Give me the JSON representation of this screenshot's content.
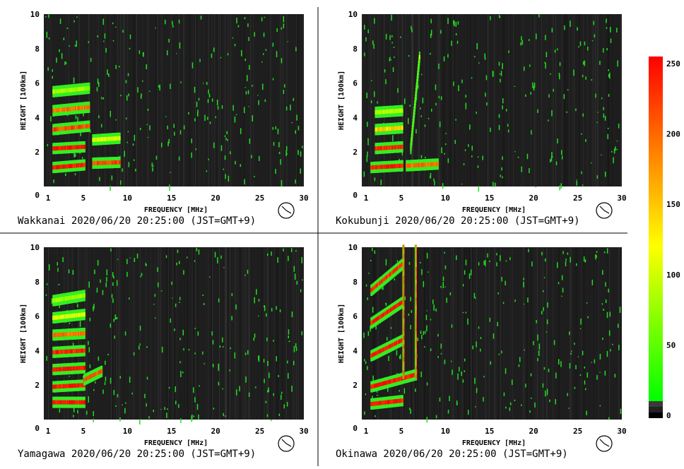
{
  "chart_data": [
    {
      "type": "heatmap",
      "station": "Wakkanai",
      "caption": "Wakkanai 2020/06/20 20:25:00 (JST=GMT+9)",
      "xlabel": "FREQUENCY [MHz]",
      "ylabel": "HEIGHT [100km]",
      "xlim": [
        1,
        30
      ],
      "ylim": [
        0,
        10
      ],
      "x_ticks": [
        "1",
        "5",
        "10",
        "15",
        "20",
        "25",
        "30"
      ],
      "y_ticks": [
        "0",
        "2",
        "4",
        "6",
        "8",
        "10"
      ],
      "traces": [
        {
          "f_start": 1.5,
          "f_end": 5.0,
          "h_start": 1.1,
          "h_end": 1.25,
          "intensity": 250
        },
        {
          "f_start": 6.0,
          "f_end": 9.0,
          "h_start": 1.35,
          "h_end": 1.4,
          "intensity": 220
        },
        {
          "f_start": 1.5,
          "f_end": 5.0,
          "h_start": 2.2,
          "h_end": 2.3,
          "intensity": 250
        },
        {
          "f_start": 6.0,
          "f_end": 9.0,
          "h_start": 2.7,
          "h_end": 2.8,
          "intensity": 110
        },
        {
          "f_start": 1.5,
          "f_end": 5.5,
          "h_start": 3.3,
          "h_end": 3.5,
          "intensity": 220
        },
        {
          "f_start": 1.5,
          "f_end": 5.5,
          "h_start": 4.4,
          "h_end": 4.6,
          "intensity": 200
        },
        {
          "f_start": 1.5,
          "f_end": 5.5,
          "h_start": 5.5,
          "h_end": 5.7,
          "intensity": 80
        }
      ]
    },
    {
      "type": "heatmap",
      "station": "Kokubunji",
      "caption": "Kokubunji 2020/06/20 20:25:00 (JST=GMT+9)",
      "xlabel": "FREQUENCY [MHz]",
      "ylabel": "HEIGHT [100km]",
      "xlim": [
        1,
        30
      ],
      "ylim": [
        0,
        10
      ],
      "x_ticks": [
        "1",
        "5",
        "10",
        "15",
        "20",
        "25",
        "30"
      ],
      "y_ticks": [
        "0",
        "2",
        "4",
        "6",
        "8",
        "10"
      ],
      "traces": [
        {
          "f_start": 1.5,
          "f_end": 5.0,
          "h_start": 1.1,
          "h_end": 1.2,
          "intensity": 250
        },
        {
          "f_start": 5.5,
          "f_end": 9.0,
          "h_start": 1.2,
          "h_end": 1.3,
          "intensity": 200
        },
        {
          "f_start": 2.0,
          "f_end": 5.0,
          "h_start": 2.2,
          "h_end": 2.3,
          "intensity": 240
        },
        {
          "f_start": 2.0,
          "f_end": 5.0,
          "h_start": 3.3,
          "h_end": 3.4,
          "intensity": 150
        },
        {
          "f_start": 2.0,
          "f_end": 5.0,
          "h_start": 4.3,
          "h_end": 4.4,
          "intensity": 90
        },
        {
          "f_start": 6.0,
          "f_end": 7.0,
          "h_start": 2.2,
          "h_end": 7.5,
          "intensity": 90
        }
      ]
    },
    {
      "type": "heatmap",
      "station": "Yamagawa",
      "caption": "Yamagawa 2020/06/20 20:25:00 (JST=GMT+9)",
      "xlabel": "FREQUENCY [MHz]",
      "ylabel": "HEIGHT [100km]",
      "xlim": [
        1,
        30
      ],
      "ylim": [
        0,
        10
      ],
      "x_ticks": [
        "1",
        "5",
        "10",
        "15",
        "20",
        "25",
        "30"
      ],
      "y_ticks": [
        "0",
        "2",
        "4",
        "6",
        "8",
        "10"
      ],
      "traces": [
        {
          "f_start": 1.5,
          "f_end": 5.0,
          "h_start": 1.0,
          "h_end": 1.0,
          "intensity": 250
        },
        {
          "f_start": 1.5,
          "f_end": 5.0,
          "h_start": 1.9,
          "h_end": 2.0,
          "intensity": 250
        },
        {
          "f_start": 5.0,
          "f_end": 7.0,
          "h_start": 2.3,
          "h_end": 2.8,
          "intensity": 220
        },
        {
          "f_start": 1.5,
          "f_end": 5.0,
          "h_start": 2.9,
          "h_end": 3.0,
          "intensity": 250
        },
        {
          "f_start": 1.5,
          "f_end": 5.0,
          "h_start": 3.9,
          "h_end": 4.0,
          "intensity": 240
        },
        {
          "f_start": 1.5,
          "f_end": 5.0,
          "h_start": 4.9,
          "h_end": 5.0,
          "intensity": 200
        },
        {
          "f_start": 1.5,
          "f_end": 5.0,
          "h_start": 5.9,
          "h_end": 6.1,
          "intensity": 110
        },
        {
          "f_start": 1.5,
          "f_end": 5.0,
          "h_start": 6.9,
          "h_end": 7.2,
          "intensity": 80
        }
      ]
    },
    {
      "type": "heatmap",
      "station": "Okinawa",
      "caption": "Okinawa 2020/06/20 20:25:00 (JST=GMT+9)",
      "xlabel": "FREQUENCY [MHz]",
      "ylabel": "HEIGHT [100km]",
      "xlim": [
        1,
        30
      ],
      "ylim": [
        0,
        10
      ],
      "x_ticks": [
        "1",
        "5",
        "10",
        "15",
        "20",
        "25",
        "30"
      ],
      "y_ticks": [
        "0",
        "2",
        "4",
        "6",
        "8",
        "10"
      ],
      "traces": [
        {
          "f_start": 1.5,
          "f_end": 5.0,
          "h_start": 0.9,
          "h_end": 1.1,
          "intensity": 250
        },
        {
          "f_start": 1.5,
          "f_end": 6.5,
          "h_start": 1.9,
          "h_end": 2.6,
          "intensity": 250
        },
        {
          "f_start": 1.5,
          "f_end": 5.0,
          "h_start": 3.7,
          "h_end": 4.6,
          "intensity": 250
        },
        {
          "f_start": 1.5,
          "f_end": 5.0,
          "h_start": 5.6,
          "h_end": 6.8,
          "intensity": 250
        },
        {
          "f_start": 1.5,
          "f_end": 5.0,
          "h_start": 7.5,
          "h_end": 9.0,
          "intensity": 230
        },
        {
          "f_start": 5.2,
          "f_end": 5.2,
          "h_start": 2.5,
          "h_end": 10.0,
          "intensity": 200
        },
        {
          "f_start": 6.6,
          "f_end": 6.6,
          "h_start": 2.5,
          "h_end": 10.0,
          "intensity": 200
        }
      ]
    }
  ],
  "colorbar": {
    "ticks": [
      "250",
      "200",
      "150",
      "100",
      "50",
      "0"
    ],
    "range": [
      0,
      255
    ],
    "colors": {
      "low": "#00ff00",
      "mid": "#ffff00",
      "high": "#ff0000"
    }
  },
  "colors": {
    "plot_bg": "#1e1e1e",
    "noise_green": "#22dd22",
    "divider": "#000000"
  }
}
